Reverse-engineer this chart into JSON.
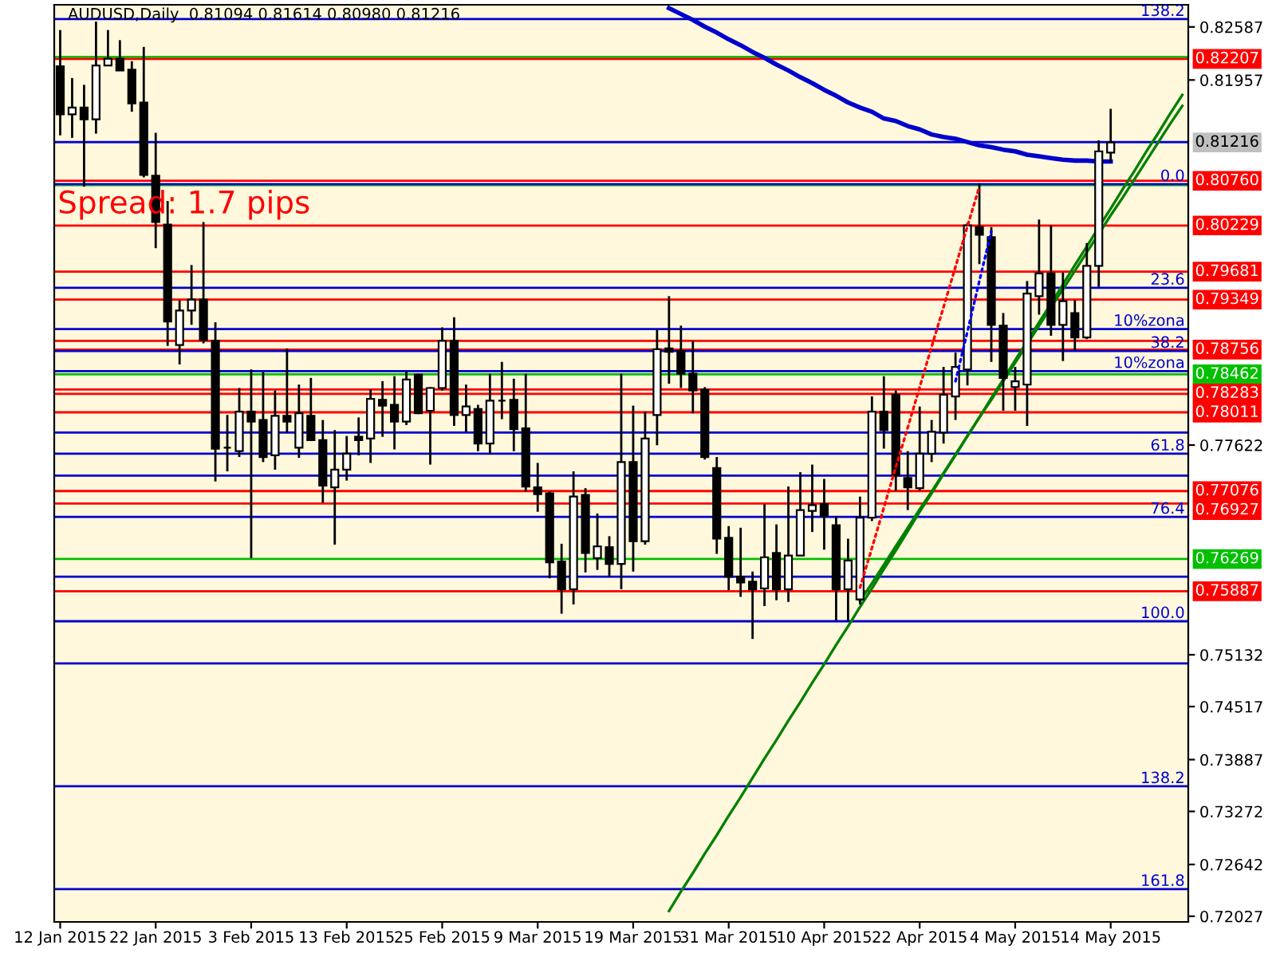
{
  "chart_data": {
    "type": "candlestick",
    "title": "AUDUSD,Daily  0.81094 0.81614 0.80980 0.81216",
    "categories": [
      "12 Jan 2015",
      null,
      null,
      null,
      null,
      null,
      null,
      null,
      "22 Jan 2015",
      null,
      null,
      null,
      null,
      null,
      null,
      null,
      "3 Feb 2015",
      null,
      null,
      null,
      null,
      null,
      null,
      null,
      "13 Feb 2015",
      null,
      null,
      null,
      null,
      null,
      null,
      null,
      "25 Feb 2015",
      null,
      null,
      null,
      null,
      null,
      null,
      null,
      "9 Mar 2015",
      null,
      null,
      null,
      null,
      null,
      null,
      null,
      "19 Mar 2015",
      null,
      null,
      null,
      null,
      null,
      null,
      null,
      "31 Mar 2015",
      null,
      null,
      null,
      null,
      null,
      null,
      null,
      "10 Apr 2015",
      null,
      null,
      null,
      null,
      null,
      null,
      null,
      "22 Apr 2015",
      null,
      null,
      null,
      null,
      null,
      null,
      null,
      "4 May 2015",
      null,
      null,
      null,
      null,
      null,
      null,
      null,
      "14 May 2015",
      null,
      null,
      null,
      null,
      null,
      null
    ],
    "ohlc": [
      [
        0.8212,
        0.8255,
        0.813,
        0.8155
      ],
      [
        0.8155,
        0.8198,
        0.8127,
        0.8163
      ],
      [
        0.8163,
        0.819,
        0.8069,
        0.8149
      ],
      [
        0.8149,
        0.8265,
        0.8132,
        0.8213
      ],
      [
        0.8213,
        0.8255,
        0.8213,
        0.8221
      ],
      [
        0.8221,
        0.8243,
        0.8207,
        0.8207
      ],
      [
        0.8208,
        0.8218,
        0.8158,
        0.8168
      ],
      [
        0.8169,
        0.8235,
        0.808,
        0.8083
      ],
      [
        0.8082,
        0.8133,
        0.7996,
        0.8027
      ],
      [
        0.8024,
        0.8052,
        0.788,
        0.7909
      ],
      [
        0.7881,
        0.7934,
        0.7858,
        0.7922
      ],
      [
        0.7922,
        0.7976,
        0.7905,
        0.7935
      ],
      [
        0.7935,
        0.8027,
        0.7883,
        0.7887
      ],
      [
        0.7886,
        0.7908,
        0.7719,
        0.7758
      ],
      [
        0.7759,
        0.7798,
        0.7731,
        0.7759
      ],
      [
        0.7755,
        0.783,
        0.7748,
        0.7802
      ],
      [
        0.7802,
        0.7852,
        0.7628,
        0.779
      ],
      [
        0.7792,
        0.7849,
        0.7742,
        0.7748
      ],
      [
        0.775,
        0.7827,
        0.7733,
        0.7797
      ],
      [
        0.7797,
        0.7877,
        0.7777,
        0.779
      ],
      [
        0.7759,
        0.7834,
        0.7747,
        0.78
      ],
      [
        0.7797,
        0.7842,
        0.7767,
        0.7768
      ],
      [
        0.7768,
        0.7792,
        0.7694,
        0.7714
      ],
      [
        0.7712,
        0.778,
        0.7644,
        0.7733
      ],
      [
        0.7733,
        0.7773,
        0.772,
        0.7752
      ],
      [
        0.7772,
        0.7795,
        0.775,
        0.7768
      ],
      [
        0.777,
        0.7828,
        0.7741,
        0.7817
      ],
      [
        0.7816,
        0.7838,
        0.7772,
        0.7809
      ],
      [
        0.781,
        0.7844,
        0.7757,
        0.779
      ],
      [
        0.779,
        0.785,
        0.7786,
        0.784
      ],
      [
        0.7846,
        0.7847,
        0.7799,
        0.78
      ],
      [
        0.7803,
        0.7831,
        0.7739,
        0.783
      ],
      [
        0.783,
        0.7902,
        0.7827,
        0.7886
      ],
      [
        0.7886,
        0.7914,
        0.7785,
        0.7798
      ],
      [
        0.7798,
        0.7834,
        0.7778,
        0.7808
      ],
      [
        0.7805,
        0.781,
        0.7755,
        0.7764
      ],
      [
        0.7764,
        0.7847,
        0.7751,
        0.7815
      ],
      [
        0.7815,
        0.7861,
        0.7793,
        0.7815
      ],
      [
        0.7816,
        0.7841,
        0.7755,
        0.7781
      ],
      [
        0.7782,
        0.7847,
        0.7707,
        0.7713
      ],
      [
        0.7712,
        0.7741,
        0.7683,
        0.7704
      ],
      [
        0.7705,
        0.7707,
        0.7604,
        0.7623
      ],
      [
        0.7624,
        0.7645,
        0.7562,
        0.7591
      ],
      [
        0.7591,
        0.7731,
        0.7573,
        0.7701
      ],
      [
        0.7703,
        0.7711,
        0.7611,
        0.7634
      ],
      [
        0.7628,
        0.7681,
        0.7614,
        0.7642
      ],
      [
        0.7641,
        0.7654,
        0.7606,
        0.7621
      ],
      [
        0.7621,
        0.7847,
        0.7591,
        0.7742
      ],
      [
        0.7742,
        0.7809,
        0.7612,
        0.7648
      ],
      [
        0.7648,
        0.7802,
        0.7644,
        0.777
      ],
      [
        0.7798,
        0.7899,
        0.7762,
        0.7876
      ],
      [
        0.7877,
        0.7939,
        0.7835,
        0.7873
      ],
      [
        0.7874,
        0.7904,
        0.783,
        0.7847
      ],
      [
        0.7847,
        0.7886,
        0.78,
        0.7827
      ],
      [
        0.7828,
        0.7831,
        0.7745,
        0.7748
      ],
      [
        0.7735,
        0.7748,
        0.7633,
        0.7651
      ],
      [
        0.7652,
        0.7666,
        0.759,
        0.7606
      ],
      [
        0.7606,
        0.7664,
        0.7582,
        0.7599
      ],
      [
        0.76,
        0.7612,
        0.7532,
        0.7591
      ],
      [
        0.7592,
        0.7692,
        0.7571,
        0.7629
      ],
      [
        0.7634,
        0.7668,
        0.7578,
        0.7591
      ],
      [
        0.7591,
        0.7713,
        0.7576,
        0.7631
      ],
      [
        0.7631,
        0.773,
        0.7631,
        0.7685
      ],
      [
        0.7684,
        0.7739,
        0.7659,
        0.7691
      ],
      [
        0.7692,
        0.7722,
        0.7638,
        0.7678
      ],
      [
        0.7667,
        0.7678,
        0.7554,
        0.7591
      ],
      [
        0.7591,
        0.7651,
        0.7554,
        0.7625
      ],
      [
        0.7579,
        0.7701,
        0.7573,
        0.7676
      ],
      [
        0.7676,
        0.782,
        0.7672,
        0.7802
      ],
      [
        0.7802,
        0.7844,
        0.7758,
        0.778
      ],
      [
        0.7822,
        0.7827,
        0.7708,
        0.7726
      ],
      [
        0.7723,
        0.7755,
        0.7685,
        0.7712
      ],
      [
        0.7711,
        0.7808,
        0.7708,
        0.7752
      ],
      [
        0.7752,
        0.7792,
        0.7742,
        0.7778
      ],
      [
        0.7777,
        0.7855,
        0.7764,
        0.7822
      ],
      [
        0.782,
        0.7872,
        0.7792,
        0.7855
      ],
      [
        0.7852,
        0.8026,
        0.7833,
        0.8023
      ],
      [
        0.8021,
        0.8073,
        0.7977,
        0.8012
      ],
      [
        0.8009,
        0.8021,
        0.7861,
        0.7905
      ],
      [
        0.7904,
        0.7919,
        0.7803,
        0.7842
      ],
      [
        0.7831,
        0.7855,
        0.7803,
        0.7838
      ],
      [
        0.7834,
        0.7957,
        0.7785,
        0.7942
      ],
      [
        0.7939,
        0.803,
        0.7917,
        0.7966
      ],
      [
        0.7966,
        0.8023,
        0.7892,
        0.7905
      ],
      [
        0.7905,
        0.7967,
        0.7862,
        0.7933
      ],
      [
        0.7919,
        0.7934,
        0.7875,
        0.789
      ],
      [
        0.789,
        0.8002,
        0.7888,
        0.7975
      ],
      [
        0.7975,
        0.8124,
        0.795,
        0.8111
      ],
      [
        0.81094,
        0.81614,
        0.8098,
        0.81216
      ],
      null,
      null,
      null,
      null,
      null,
      null
    ],
    "series": [
      {
        "type": "line",
        "color": "#0000cd",
        "line_style": "solid",
        "values": [
          null,
          null,
          null,
          null,
          null,
          null,
          null,
          null,
          null,
          null,
          null,
          null,
          null,
          null,
          null,
          null,
          null,
          null,
          null,
          null,
          null,
          null,
          null,
          null,
          null,
          null,
          null,
          null,
          null,
          null,
          null,
          null,
          null,
          null,
          null,
          null,
          null,
          null,
          null,
          null,
          null,
          null,
          null,
          null,
          null,
          null,
          null,
          null,
          null,
          null,
          null,
          0.8281,
          0.8274,
          0.8267,
          0.8259,
          0.8252,
          0.8244,
          0.8237,
          0.8229,
          0.8222,
          0.8214,
          0.8207,
          0.8199,
          0.8192,
          0.8184,
          0.8177,
          0.8169,
          0.8163,
          0.8158,
          0.815,
          0.8147,
          0.8141,
          0.8137,
          0.8131,
          0.8128,
          0.8126,
          0.8122,
          0.8118,
          0.8116,
          0.8113,
          0.8111,
          0.8107,
          0.8105,
          0.8103,
          0.8101,
          0.81,
          0.81,
          0.8099,
          0.8099,
          null,
          null,
          null,
          null,
          null,
          null
        ]
      },
      {
        "type": "line",
        "color": "#008000",
        "line_style": "solid",
        "values": [
          null,
          null,
          null,
          null,
          null,
          null,
          null,
          null,
          null,
          null,
          null,
          null,
          null,
          null,
          null,
          null,
          null,
          null,
          null,
          null,
          null,
          null,
          null,
          null,
          null,
          null,
          null,
          null,
          null,
          null,
          null,
          null,
          null,
          null,
          null,
          null,
          null,
          null,
          null,
          null,
          null,
          null,
          null,
          null,
          null,
          null,
          null,
          null,
          null,
          null,
          null,
          0.7209,
          0.7232,
          0.7254,
          0.7277,
          0.7299,
          0.7322,
          0.7344,
          0.7367,
          0.739,
          0.7412,
          0.7435,
          0.7457,
          0.748,
          0.7502,
          0.7525,
          0.7547,
          0.757,
          0.7592,
          0.7615,
          0.7637,
          0.766,
          0.7683,
          0.7705,
          0.7728,
          0.775,
          0.7773,
          0.7795,
          0.7818,
          0.784,
          0.7863,
          0.7885,
          0.7908,
          0.793,
          0.7953,
          0.7976,
          0.7998,
          0.8021,
          0.8043,
          0.8066,
          0.8088,
          0.8111,
          0.8133,
          0.8156,
          0.8178
        ]
      },
      {
        "type": "line",
        "color": "#008000",
        "line_style": "solid",
        "values": [
          null,
          null,
          null,
          null,
          null,
          null,
          null,
          null,
          null,
          null,
          null,
          null,
          null,
          null,
          null,
          null,
          null,
          null,
          null,
          null,
          null,
          null,
          null,
          null,
          null,
          null,
          null,
          null,
          null,
          null,
          null,
          null,
          null,
          null,
          null,
          null,
          null,
          null,
          null,
          null,
          null,
          null,
          null,
          null,
          null,
          null,
          null,
          null,
          null,
          null,
          null,
          null,
          null,
          null,
          null,
          null,
          null,
          null,
          null,
          null,
          null,
          null,
          null,
          null,
          null,
          null,
          null,
          0.7577,
          0.7598,
          0.762,
          0.7642,
          0.7664,
          0.7686,
          0.7707,
          0.7729,
          0.7751,
          0.7773,
          0.7795,
          0.7816,
          0.7838,
          0.786,
          0.7882,
          0.7904,
          0.7926,
          0.7947,
          0.7969,
          0.7991,
          0.8013,
          0.8035,
          0.8056,
          0.8078,
          0.81,
          0.8122,
          0.8144,
          0.8165
        ]
      },
      {
        "type": "line",
        "color": "#ff0000",
        "line_style": "dotted",
        "values": [
          null,
          null,
          null,
          null,
          null,
          null,
          null,
          null,
          null,
          null,
          null,
          null,
          null,
          null,
          null,
          null,
          null,
          null,
          null,
          null,
          null,
          null,
          null,
          null,
          null,
          null,
          null,
          null,
          null,
          null,
          null,
          null,
          null,
          null,
          null,
          null,
          null,
          null,
          null,
          null,
          null,
          null,
          null,
          null,
          null,
          null,
          null,
          null,
          null,
          null,
          null,
          null,
          null,
          null,
          null,
          null,
          null,
          null,
          null,
          null,
          null,
          null,
          null,
          null,
          null,
          null,
          null,
          0.7593,
          0.764,
          0.7688,
          0.7736,
          0.7783,
          0.7831,
          0.7879,
          0.7926,
          0.7974,
          0.8022,
          0.8069,
          null,
          null,
          null,
          null,
          null,
          null,
          null,
          null,
          null,
          null,
          null,
          null,
          null,
          null,
          null,
          null,
          null
        ]
      },
      {
        "type": "line",
        "color": "#0000ff",
        "line_style": "dotted",
        "values": [
          null,
          null,
          null,
          null,
          null,
          null,
          null,
          null,
          null,
          null,
          null,
          null,
          null,
          null,
          null,
          null,
          null,
          null,
          null,
          null,
          null,
          null,
          null,
          null,
          null,
          null,
          null,
          null,
          null,
          null,
          null,
          null,
          null,
          null,
          null,
          null,
          null,
          null,
          null,
          null,
          null,
          null,
          null,
          null,
          null,
          null,
          null,
          null,
          null,
          null,
          null,
          null,
          null,
          null,
          null,
          null,
          null,
          null,
          null,
          null,
          null,
          null,
          null,
          null,
          null,
          null,
          null,
          null,
          null,
          null,
          null,
          null,
          null,
          null,
          null,
          0.7838,
          0.7897,
          0.7957,
          0.8016,
          null,
          null,
          null,
          null,
          null,
          null,
          null,
          null,
          null,
          null,
          null,
          null,
          null,
          null,
          null,
          null
        ]
      }
    ],
    "ylim": [
      0.7196,
      0.8285
    ],
    "yticks": [
      0.82587,
      0.81957,
      0.77622,
      0.75132,
      0.74517,
      0.73887,
      0.73272,
      0.72642,
      0.72027
    ],
    "ref_lines": [
      {
        "axis": "y",
        "value": 0.8223,
        "color": "#00c000"
      },
      {
        "axis": "y",
        "value": 0.82207,
        "label": "0.82207",
        "color": "#ff0000"
      },
      {
        "axis": "y",
        "value": 0.81216,
        "label": "0.81216",
        "color": "#c0c0c0"
      },
      {
        "axis": "y",
        "value": 0.8071,
        "color": "#00c000"
      },
      {
        "axis": "y",
        "value": 0.8076,
        "label": "0.80760",
        "color": "#ff0000"
      },
      {
        "axis": "y",
        "value": 0.80229,
        "label": "0.80229",
        "color": "#ff0000"
      },
      {
        "axis": "y",
        "value": 0.79681,
        "label": "0.79681",
        "color": "#ff0000"
      },
      {
        "axis": "y",
        "value": 0.79349,
        "label": "0.79349",
        "color": "#ff0000"
      },
      {
        "axis": "y",
        "value": 0.7886,
        "color": "#ff0000"
      },
      {
        "axis": "y",
        "value": 0.78756,
        "label": "0.78756",
        "color": "#ff0000"
      },
      {
        "axis": "y",
        "value": 0.78462,
        "label": "0.78462",
        "color": "#00c000"
      },
      {
        "axis": "y",
        "value": 0.78283,
        "label": "0.78283",
        "color": "#ff0000"
      },
      {
        "axis": "y",
        "value": 0.7823,
        "color": "#ff0000"
      },
      {
        "axis": "y",
        "value": 0.78011,
        "label": "0.78011",
        "color": "#ff0000"
      },
      {
        "axis": "y",
        "value": 0.77076,
        "label": "0.77076",
        "color": "#ff0000"
      },
      {
        "axis": "y",
        "value": 0.76927,
        "label": "0.76927",
        "color": "#ff0000"
      },
      {
        "axis": "y",
        "value": 0.76269,
        "label": "0.76269",
        "color": "#00c000"
      },
      {
        "axis": "y",
        "value": 0.75887,
        "label": "0.75887",
        "color": "#ff0000"
      },
      {
        "axis": "y",
        "value": 0.8268,
        "color": "#0000cd"
      },
      {
        "axis": "y",
        "value": 0.8122,
        "color": "#0000cd"
      },
      {
        "axis": "y",
        "value": 0.8072,
        "color": "#0000cd"
      },
      {
        "axis": "y",
        "value": 0.7949,
        "color": "#0000cd"
      },
      {
        "axis": "y",
        "value": 0.79,
        "color": "#0000cd"
      },
      {
        "axis": "y",
        "value": 0.7874,
        "color": "#0000cd"
      },
      {
        "axis": "y",
        "value": 0.785,
        "color": "#0000cd"
      },
      {
        "axis": "y",
        "value": 0.7777,
        "color": "#0000cd"
      },
      {
        "axis": "y",
        "value": 0.7752,
        "color": "#0000cd"
      },
      {
        "axis": "y",
        "value": 0.7726,
        "color": "#0000cd"
      },
      {
        "axis": "y",
        "value": 0.7677,
        "color": "#0000cd"
      },
      {
        "axis": "y",
        "value": 0.7606,
        "color": "#0000cd"
      },
      {
        "axis": "y",
        "value": 0.7553,
        "color": "#0000cd"
      },
      {
        "axis": "y",
        "value": 0.7503,
        "color": "#0000cd"
      },
      {
        "axis": "y",
        "value": 0.7357,
        "color": "#0000cd"
      },
      {
        "axis": "y",
        "value": 0.7235,
        "color": "#0000cd"
      }
    ],
    "annotations": [
      "Spread: 1.7 pips",
      {
        "text": "138.2",
        "y": 0.8268
      },
      {
        "text": "0.0",
        "y": 0.8072
      },
      {
        "text": "23.6",
        "y": 0.7949
      },
      {
        "text": "10%zona",
        "y": 0.79
      },
      {
        "text": "38.2",
        "y": 0.7874
      },
      {
        "text": "10%zona",
        "y": 0.785
      },
      {
        "text": "61.8",
        "y": 0.7752
      },
      {
        "text": "76.4",
        "y": 0.7677
      },
      {
        "text": "100.0",
        "y": 0.7553
      },
      {
        "text": "138.2",
        "y": 0.7357
      },
      {
        "text": "161.8",
        "y": 0.7235
      }
    ],
    "grid": false
  }
}
